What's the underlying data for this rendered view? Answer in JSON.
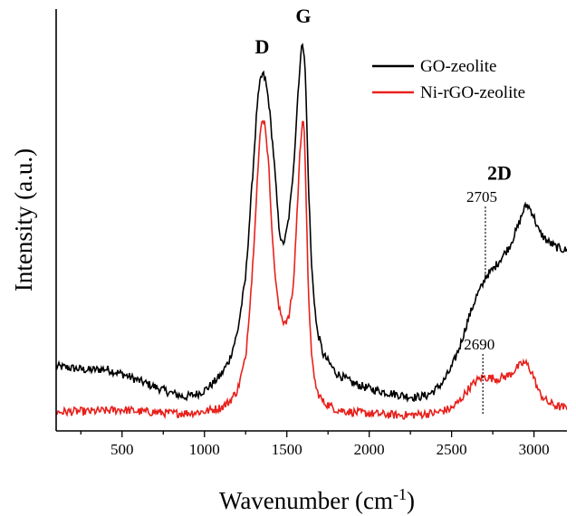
{
  "chart_data": {
    "type": "line",
    "title": "",
    "xlabel": "Wavenumber (cm",
    "xlabel_sup": "-1",
    "xlabel_close": ")",
    "ylabel": "Intensity (a.u.)",
    "xlim": [
      100,
      3200
    ],
    "ylim": [
      0,
      1
    ],
    "y_ticks_shown": false,
    "grid": false,
    "legend_position": "top-right",
    "x_ticks": [
      500,
      1000,
      1500,
      2000,
      2500,
      3000
    ],
    "x_tick_labels": [
      "500",
      "1000",
      "1500",
      "2000",
      "2500",
      "3000"
    ],
    "series": [
      {
        "name": "GO-zeolite",
        "color": "#000000",
        "x": [
          100,
          200,
          300,
          400,
          500,
          600,
          700,
          800,
          880,
          950,
          1000,
          1050,
          1100,
          1150,
          1200,
          1250,
          1290,
          1320,
          1340,
          1355,
          1370,
          1390,
          1420,
          1450,
          1470,
          1490,
          1510,
          1530,
          1550,
          1570,
          1585,
          1595,
          1605,
          1615,
          1630,
          1650,
          1680,
          1720,
          1800,
          1900,
          2000,
          2100,
          2200,
          2280,
          2350,
          2400,
          2450,
          2500,
          2550,
          2600,
          2650,
          2690,
          2705,
          2750,
          2800,
          2850,
          2900,
          2940,
          2960,
          2990,
          3030,
          3080,
          3130,
          3200
        ],
        "y": [
          0.138,
          0.133,
          0.128,
          0.131,
          0.118,
          0.101,
          0.084,
          0.068,
          0.058,
          0.065,
          0.075,
          0.093,
          0.115,
          0.153,
          0.225,
          0.37,
          0.62,
          0.82,
          0.886,
          0.902,
          0.885,
          0.83,
          0.69,
          0.51,
          0.455,
          0.47,
          0.52,
          0.6,
          0.72,
          0.87,
          0.95,
          0.985,
          0.96,
          0.87,
          0.63,
          0.4,
          0.24,
          0.17,
          0.12,
          0.094,
          0.08,
          0.07,
          0.062,
          0.057,
          0.062,
          0.076,
          0.098,
          0.135,
          0.19,
          0.26,
          0.32,
          0.352,
          0.372,
          0.39,
          0.42,
          0.45,
          0.5,
          0.55,
          0.56,
          0.54,
          0.49,
          0.465,
          0.45,
          0.44
        ]
      },
      {
        "name": "Ni-rGO-zeolite",
        "color": "#e8211c",
        "x": [
          100,
          200,
          300,
          400,
          500,
          600,
          700,
          800,
          900,
          1000,
          1100,
          1150,
          1200,
          1250,
          1290,
          1320,
          1340,
          1355,
          1370,
          1390,
          1420,
          1450,
          1480,
          1510,
          1540,
          1560,
          1580,
          1595,
          1605,
          1615,
          1630,
          1650,
          1680,
          1720,
          1800,
          1900,
          2000,
          2100,
          2200,
          2300,
          2400,
          2500,
          2550,
          2600,
          2650,
          2690,
          2730,
          2780,
          2850,
          2900,
          2940,
          2960,
          2990,
          3030,
          3080,
          3130,
          3200
        ],
        "y": [
          0.018,
          0.02,
          0.02,
          0.022,
          0.025,
          0.02,
          0.018,
          0.015,
          0.016,
          0.02,
          0.03,
          0.045,
          0.075,
          0.16,
          0.38,
          0.62,
          0.755,
          0.788,
          0.765,
          0.66,
          0.42,
          0.29,
          0.255,
          0.26,
          0.35,
          0.52,
          0.7,
          0.787,
          0.77,
          0.6,
          0.35,
          0.16,
          0.075,
          0.045,
          0.025,
          0.018,
          0.015,
          0.012,
          0.01,
          0.012,
          0.016,
          0.028,
          0.048,
          0.078,
          0.1,
          0.11,
          0.108,
          0.105,
          0.115,
          0.135,
          0.148,
          0.142,
          0.12,
          0.07,
          0.045,
          0.035,
          0.028
        ]
      }
    ],
    "peak_labels": [
      {
        "text": "D",
        "x": 1350,
        "y": 0.955
      },
      {
        "text": "G",
        "x": 1600,
        "y": 1.035
      },
      {
        "text": "2D",
        "x": 2790,
        "y": 0.625
      }
    ],
    "annotations": [
      {
        "text": "2705",
        "line_x": 2705,
        "y_top": 0.555,
        "y_bottom": 0.38,
        "series": "GO-zeolite"
      },
      {
        "text": "2690",
        "line_x": 2690,
        "y_top": 0.17,
        "y_bottom": 0.01,
        "series": "Ni-rGO-zeolite"
      }
    ]
  }
}
